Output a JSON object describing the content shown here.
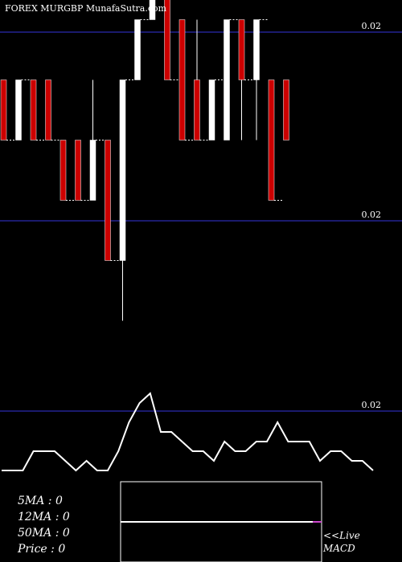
{
  "title": "FOREX  MURGBP MunafaSutra.com",
  "colors": {
    "background": "#000000",
    "up": "#ffffff",
    "down": "#cc0000",
    "level_line": "#1a1a6e",
    "macd_signal": "#cc44cc"
  },
  "indicators": {
    "ma5": "5MA : 0",
    "ma12": "12MA : 0",
    "ma50": "50MA : 0",
    "price": "Price   : 0"
  },
  "live_label": "<<Live",
  "macd_label": "MACD",
  "chart_data": {
    "type": "candlestick",
    "price_axis_labels": [
      "0.02",
      "0.02",
      "0.02"
    ],
    "candles": [
      {
        "dir": "down",
        "o": 0.75,
        "c": 0.45,
        "h": 0.75,
        "l": 0.45
      },
      {
        "dir": "up",
        "o": 0.45,
        "c": 0.75,
        "h": 0.75,
        "l": 0.45
      },
      {
        "dir": "down",
        "o": 0.75,
        "c": 0.45,
        "h": 0.75,
        "l": 0.45
      },
      {
        "dir": "down",
        "o": 0.75,
        "c": 0.45,
        "h": 0.75,
        "l": 0.45
      },
      {
        "dir": "down",
        "o": 0.45,
        "c": 0.15,
        "h": 0.45,
        "l": 0.15
      },
      {
        "dir": "down",
        "o": 0.45,
        "c": 0.15,
        "h": 0.45,
        "l": 0.15
      },
      {
        "dir": "up",
        "o": 0.15,
        "c": 0.45,
        "h": 0.75,
        "l": 0.15
      },
      {
        "dir": "down",
        "o": 0.45,
        "c": -0.15,
        "h": 0.45,
        "l": -0.15
      },
      {
        "dir": "up",
        "o": -0.15,
        "c": 0.75,
        "h": 0.75,
        "l": -0.45
      },
      {
        "dir": "up",
        "o": 0.75,
        "c": 1.05,
        "h": 1.05,
        "l": 0.75
      },
      {
        "dir": "up",
        "o": 1.05,
        "c": 1.35,
        "h": 1.35,
        "l": 1.05
      },
      {
        "dir": "down",
        "o": 1.35,
        "c": 0.75,
        "h": 1.35,
        "l": 0.75
      },
      {
        "dir": "down",
        "o": 1.05,
        "c": 0.45,
        "h": 1.05,
        "l": 0.45
      },
      {
        "dir": "down",
        "o": 0.75,
        "c": 0.45,
        "h": 1.05,
        "l": 0.45
      },
      {
        "dir": "up",
        "o": 0.45,
        "c": 0.75,
        "h": 0.75,
        "l": 0.45
      },
      {
        "dir": "up",
        "o": 0.45,
        "c": 1.05,
        "h": 1.05,
        "l": 0.45
      },
      {
        "dir": "down",
        "o": 1.05,
        "c": 0.75,
        "h": 1.05,
        "l": 0.45
      },
      {
        "dir": "up",
        "o": 0.75,
        "c": 1.05,
        "h": 1.05,
        "l": 0.45
      },
      {
        "dir": "down",
        "o": 0.75,
        "c": 0.15,
        "h": 0.75,
        "l": 0.15
      },
      {
        "dir": "down",
        "o": 0.75,
        "c": 0.45,
        "h": 0.75,
        "l": 0.45
      }
    ],
    "macd": [
      2,
      2,
      2,
      4,
      4,
      4,
      3,
      2,
      3,
      2,
      2,
      4,
      7,
      9,
      10,
      6,
      6,
      5,
      4,
      4,
      3,
      5,
      4,
      4,
      5,
      5,
      7,
      5,
      5,
      5,
      3,
      4,
      4,
      3,
      3,
      2
    ],
    "macd_range": [
      0,
      10
    ]
  }
}
